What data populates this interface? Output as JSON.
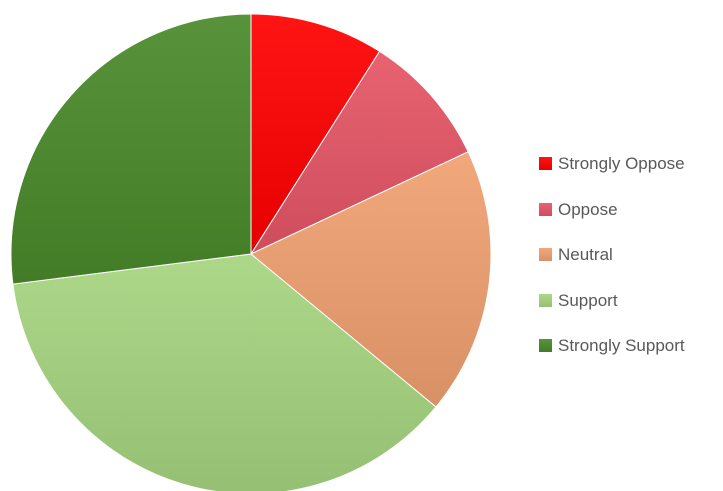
{
  "chart_data": {
    "type": "pie",
    "title": "",
    "categories": [
      "Strongly Oppose",
      "Oppose",
      "Neutral",
      "Support",
      "Strongly Support"
    ],
    "values": [
      9,
      9,
      18,
      37,
      27
    ],
    "unit": "percent (estimated)",
    "colors": [
      "#ff0000",
      "#e55566",
      "#f0a070",
      "#a6d47f",
      "#4a8a2a"
    ],
    "start_angle_deg": 0,
    "direction": "clockwise from top",
    "legend": {
      "placement": "right",
      "items": [
        {
          "label": "Strongly Oppose",
          "color": "#ff0000"
        },
        {
          "label": "Oppose",
          "color": "#e55566"
        },
        {
          "label": "Neutral",
          "color": "#f0a070"
        },
        {
          "label": "Support",
          "color": "#a6d47f"
        },
        {
          "label": "Strongly Support",
          "color": "#4a8a2a"
        }
      ]
    }
  }
}
